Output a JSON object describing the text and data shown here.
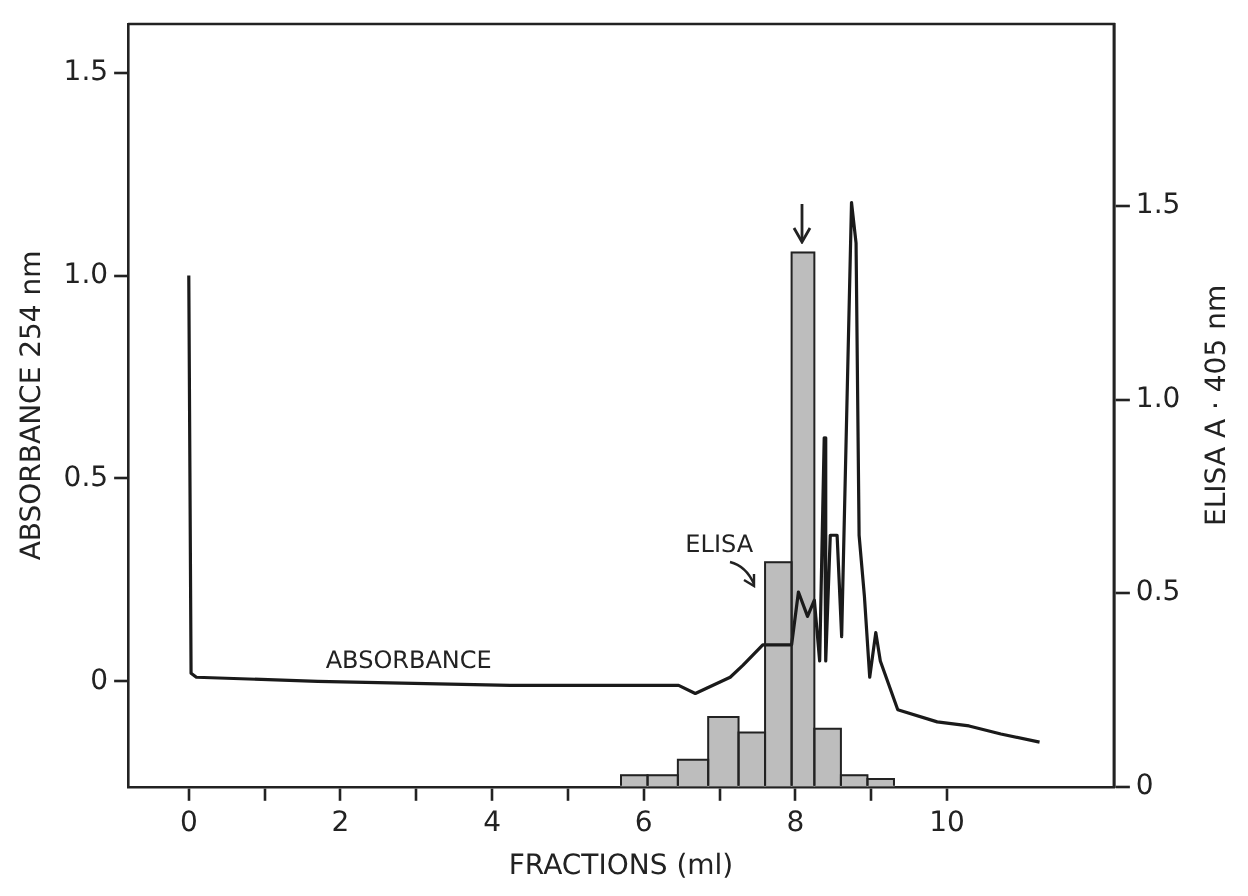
{
  "chart_data": {
    "type": "line",
    "xlabel": "FRACTIONS (ml)",
    "ylabel": "ABSORBANCE 254 nm",
    "y2label": "ELISA A · 405 nm",
    "xlim": [
      -0.8,
      12.2
    ],
    "xticks": [
      0,
      {
        "value": 1,
        "label": null
      },
      2,
      {
        "value": 3,
        "label": null
      },
      4,
      {
        "value": 5,
        "label": null
      },
      6,
      {
        "value": 7,
        "label": null
      },
      8,
      {
        "value": 9,
        "label": null
      },
      10
    ],
    "ylim": [
      -0.26,
      1.62
    ],
    "yticks": [
      0,
      0.5,
      {
        "value": 1,
        "label": "1.0"
      },
      1.5
    ],
    "y2lim": [
      0,
      1.97
    ],
    "y2ticks": [
      0,
      0.5,
      {
        "value": 1,
        "label": "1.0"
      },
      1.5
    ],
    "legend": false,
    "marker": "none",
    "line_style": "solid",
    "series": [
      {
        "name": "ELISA",
        "type": "histogram",
        "axis": "y2",
        "color": "#bdbdbd",
        "bins": [
          5.7,
          6.05,
          6.45,
          6.85,
          7.25,
          7.6,
          7.95,
          8.25,
          8.6,
          8.95,
          9.3
        ],
        "values": [
          0.03,
          0.03,
          0.07,
          0.18,
          0.14,
          0.58,
          1.38,
          0.15,
          0.03,
          0.02
        ]
      },
      {
        "name": "ABSORBANCE",
        "color": "#1a1a1a",
        "x": [
          0,
          0.03,
          0.1,
          1.7,
          4.25,
          6.46,
          6.68,
          7.14,
          7.31,
          7.57,
          7.95,
          8.04,
          8.16,
          8.25,
          8.32,
          8.38,
          8.4,
          8.46,
          8.55,
          8.61,
          8.74,
          8.8,
          8.84,
          8.91,
          8.98,
          9.06,
          9.12,
          9.35,
          9.87,
          10.29,
          10.71,
          11.22
        ],
        "values": [
          1.0,
          0.02,
          0.01,
          0.0,
          -0.01,
          -0.01,
          -0.03,
          0.01,
          0.04,
          0.09,
          0.09,
          0.22,
          0.16,
          0.2,
          0.05,
          0.6,
          0.05,
          0.36,
          0.36,
          0.11,
          1.18,
          1.08,
          0.36,
          0.21,
          0.01,
          0.12,
          0.05,
          -0.07,
          -0.1,
          -0.11,
          -0.13,
          -0.15
        ]
      }
    ]
  }
}
